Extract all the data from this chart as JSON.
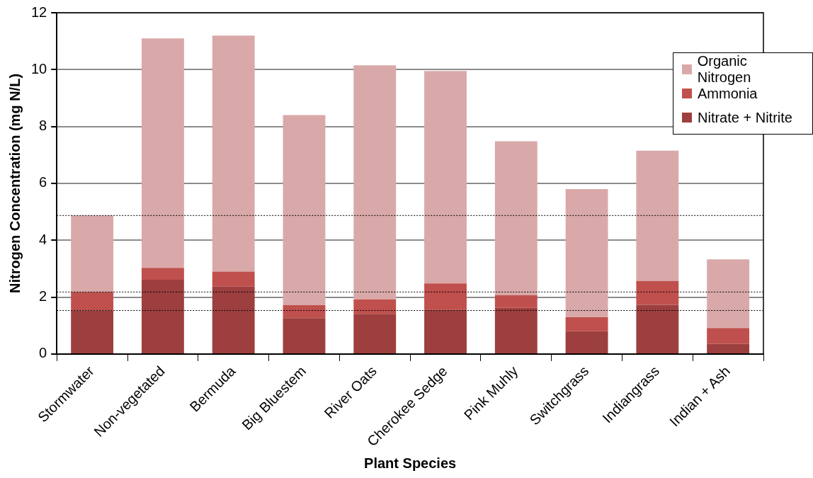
{
  "chart_data": {
    "type": "bar",
    "stacked": true,
    "xlabel": "Plant Species",
    "ylabel": "Nitrogen Concentration (mg N/L)",
    "categories": [
      "Stormwater",
      "Non-vegetated",
      "Bermuda",
      "Big Bluestem",
      "River Oats",
      "Cherokee Sedge",
      "Pink Muhly",
      "Switchgrass",
      "Indiangrass",
      "Indian + Ash"
    ],
    "series": [
      {
        "name": "Nitrate + Nitrite",
        "color": "#9c3f3e",
        "values": [
          1.53,
          2.61,
          2.37,
          1.26,
          1.41,
          1.55,
          1.62,
          0.8,
          1.73,
          0.36
        ]
      },
      {
        "name": "Ammonia",
        "color": "#c0504d",
        "values": [
          0.65,
          0.42,
          0.53,
          0.46,
          0.51,
          0.93,
          0.45,
          0.49,
          0.84,
          0.55
        ]
      },
      {
        "name": "Organic Nitrogen",
        "color": "#d9a9a9",
        "values": [
          2.69,
          8.07,
          8.3,
          6.68,
          8.23,
          7.47,
          5.41,
          4.51,
          4.58,
          2.42
        ]
      }
    ],
    "ylim": [
      0,
      12
    ],
    "yticks": [
      0,
      2,
      4,
      6,
      8,
      10,
      12
    ],
    "grid": "y",
    "legend": "top right",
    "ref_lines": [
      {
        "axis": "y",
        "value": 4.87,
        "color": "#000000",
        "line_style": "dotted"
      },
      {
        "axis": "y",
        "value": 2.18,
        "color": "#000000",
        "line_style": "dotted"
      },
      {
        "axis": "y",
        "value": 1.53,
        "color": "#000000",
        "line_style": "dotted"
      }
    ]
  }
}
